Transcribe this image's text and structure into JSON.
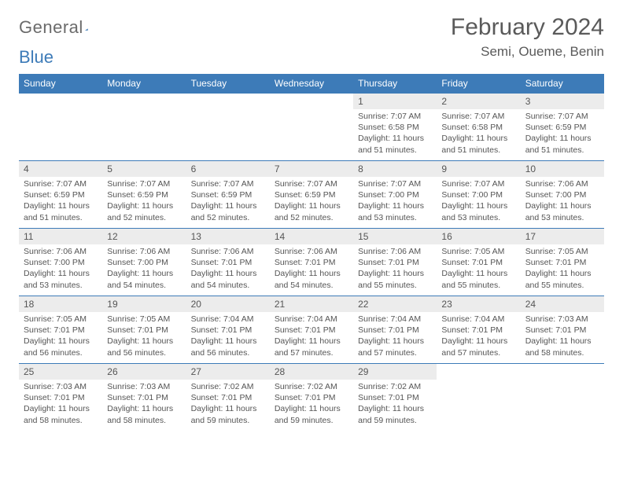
{
  "brand": {
    "part1": "General",
    "part2": "Blue"
  },
  "header": {
    "title": "February 2024",
    "location": "Semi, Oueme, Benin"
  },
  "style": {
    "accent": "#3d7bb8",
    "bg": "#ffffff",
    "daynum_bg": "#ececec",
    "text": "#555555",
    "title_color": "#5a5a5a",
    "header_text": "#ffffff",
    "title_fontsize": 30,
    "location_fontsize": 17,
    "th_fontsize": 12,
    "body_fontsize": 10.5
  },
  "calendar": {
    "type": "table",
    "days": [
      "Sunday",
      "Monday",
      "Tuesday",
      "Wednesday",
      "Thursday",
      "Friday",
      "Saturday"
    ],
    "weeks": [
      [
        null,
        null,
        null,
        null,
        {
          "n": "1",
          "sr": "7:07 AM",
          "ss": "6:58 PM",
          "dl": "11 hours and 51 minutes."
        },
        {
          "n": "2",
          "sr": "7:07 AM",
          "ss": "6:58 PM",
          "dl": "11 hours and 51 minutes."
        },
        {
          "n": "3",
          "sr": "7:07 AM",
          "ss": "6:59 PM",
          "dl": "11 hours and 51 minutes."
        }
      ],
      [
        {
          "n": "4",
          "sr": "7:07 AM",
          "ss": "6:59 PM",
          "dl": "11 hours and 51 minutes."
        },
        {
          "n": "5",
          "sr": "7:07 AM",
          "ss": "6:59 PM",
          "dl": "11 hours and 52 minutes."
        },
        {
          "n": "6",
          "sr": "7:07 AM",
          "ss": "6:59 PM",
          "dl": "11 hours and 52 minutes."
        },
        {
          "n": "7",
          "sr": "7:07 AM",
          "ss": "6:59 PM",
          "dl": "11 hours and 52 minutes."
        },
        {
          "n": "8",
          "sr": "7:07 AM",
          "ss": "7:00 PM",
          "dl": "11 hours and 53 minutes."
        },
        {
          "n": "9",
          "sr": "7:07 AM",
          "ss": "7:00 PM",
          "dl": "11 hours and 53 minutes."
        },
        {
          "n": "10",
          "sr": "7:06 AM",
          "ss": "7:00 PM",
          "dl": "11 hours and 53 minutes."
        }
      ],
      [
        {
          "n": "11",
          "sr": "7:06 AM",
          "ss": "7:00 PM",
          "dl": "11 hours and 53 minutes."
        },
        {
          "n": "12",
          "sr": "7:06 AM",
          "ss": "7:00 PM",
          "dl": "11 hours and 54 minutes."
        },
        {
          "n": "13",
          "sr": "7:06 AM",
          "ss": "7:01 PM",
          "dl": "11 hours and 54 minutes."
        },
        {
          "n": "14",
          "sr": "7:06 AM",
          "ss": "7:01 PM",
          "dl": "11 hours and 54 minutes."
        },
        {
          "n": "15",
          "sr": "7:06 AM",
          "ss": "7:01 PM",
          "dl": "11 hours and 55 minutes."
        },
        {
          "n": "16",
          "sr": "7:05 AM",
          "ss": "7:01 PM",
          "dl": "11 hours and 55 minutes."
        },
        {
          "n": "17",
          "sr": "7:05 AM",
          "ss": "7:01 PM",
          "dl": "11 hours and 55 minutes."
        }
      ],
      [
        {
          "n": "18",
          "sr": "7:05 AM",
          "ss": "7:01 PM",
          "dl": "11 hours and 56 minutes."
        },
        {
          "n": "19",
          "sr": "7:05 AM",
          "ss": "7:01 PM",
          "dl": "11 hours and 56 minutes."
        },
        {
          "n": "20",
          "sr": "7:04 AM",
          "ss": "7:01 PM",
          "dl": "11 hours and 56 minutes."
        },
        {
          "n": "21",
          "sr": "7:04 AM",
          "ss": "7:01 PM",
          "dl": "11 hours and 57 minutes."
        },
        {
          "n": "22",
          "sr": "7:04 AM",
          "ss": "7:01 PM",
          "dl": "11 hours and 57 minutes."
        },
        {
          "n": "23",
          "sr": "7:04 AM",
          "ss": "7:01 PM",
          "dl": "11 hours and 57 minutes."
        },
        {
          "n": "24",
          "sr": "7:03 AM",
          "ss": "7:01 PM",
          "dl": "11 hours and 58 minutes."
        }
      ],
      [
        {
          "n": "25",
          "sr": "7:03 AM",
          "ss": "7:01 PM",
          "dl": "11 hours and 58 minutes."
        },
        {
          "n": "26",
          "sr": "7:03 AM",
          "ss": "7:01 PM",
          "dl": "11 hours and 58 minutes."
        },
        {
          "n": "27",
          "sr": "7:02 AM",
          "ss": "7:01 PM",
          "dl": "11 hours and 59 minutes."
        },
        {
          "n": "28",
          "sr": "7:02 AM",
          "ss": "7:01 PM",
          "dl": "11 hours and 59 minutes."
        },
        {
          "n": "29",
          "sr": "7:02 AM",
          "ss": "7:01 PM",
          "dl": "11 hours and 59 minutes."
        },
        null,
        null
      ]
    ],
    "labels": {
      "sunrise": "Sunrise: ",
      "sunset": "Sunset: ",
      "daylight": "Daylight: "
    }
  }
}
